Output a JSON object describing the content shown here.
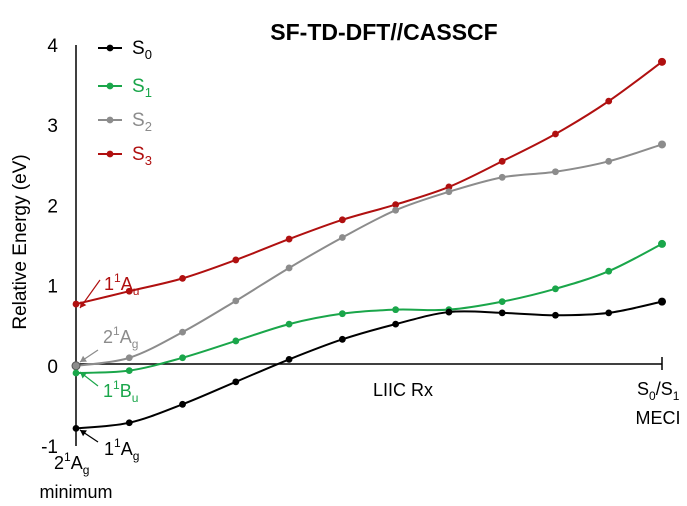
{
  "chart_data": {
    "type": "line",
    "title": "SF-TD-DFT//CASSCF",
    "ylabel": "Relative Energy (eV)",
    "xlabel": "LIIC Rx",
    "ylim": [
      -1,
      4
    ],
    "yticks": [
      "-1",
      "0",
      "1",
      "2",
      "3",
      "4"
    ],
    "x_start_label": {
      "main": "2",
      "sup": "1",
      "base": "A",
      "sub": "g",
      "line2": "minimum"
    },
    "x_end_label": {
      "a": "S",
      "a_sub": "0",
      "slash": "/",
      "b": "S",
      "b_sub": "1",
      "line2": "MECI"
    },
    "x": [
      0,
      1,
      2,
      3,
      4,
      5,
      6,
      7,
      8,
      9,
      10,
      11
    ],
    "legend_position": "top-left",
    "series": [
      {
        "name": "S",
        "name_sub": "0",
        "color": "#000000",
        "values": [
          -0.78,
          -0.71,
          -0.48,
          -0.2,
          0.08,
          0.33,
          0.52,
          0.67,
          0.66,
          0.63,
          0.66,
          0.8
        ]
      },
      {
        "name": "S",
        "name_sub": "1",
        "color": "#1aa64a",
        "values": [
          -0.09,
          -0.06,
          0.1,
          0.31,
          0.52,
          0.65,
          0.7,
          0.7,
          0.8,
          0.96,
          1.18,
          1.52
        ]
      },
      {
        "name": "S",
        "name_sub": "2",
        "color": "#8c8c8c",
        "values": [
          0.0,
          0.1,
          0.42,
          0.81,
          1.22,
          1.6,
          1.94,
          2.17,
          2.35,
          2.42,
          2.55,
          2.76
        ]
      },
      {
        "name": "S",
        "name_sub": "3",
        "color": "#b01010",
        "values": [
          0.77,
          0.93,
          1.09,
          1.32,
          1.58,
          1.82,
          2.01,
          2.23,
          2.55,
          2.89,
          3.3,
          3.79
        ]
      }
    ],
    "annotations": [
      {
        "pre": "1",
        "sup": "1",
        "base": "A",
        "sub": "u",
        "color": "#b01010"
      },
      {
        "pre": "2",
        "sup": "1",
        "base": "A",
        "sub": "g",
        "color": "#8c8c8c"
      },
      {
        "pre": "1",
        "sup": "1",
        "base": "B",
        "sub": "u",
        "color": "#1aa64a"
      },
      {
        "pre": "1",
        "sup": "1",
        "base": "A",
        "sub": "g",
        "color": "#000000"
      }
    ]
  }
}
